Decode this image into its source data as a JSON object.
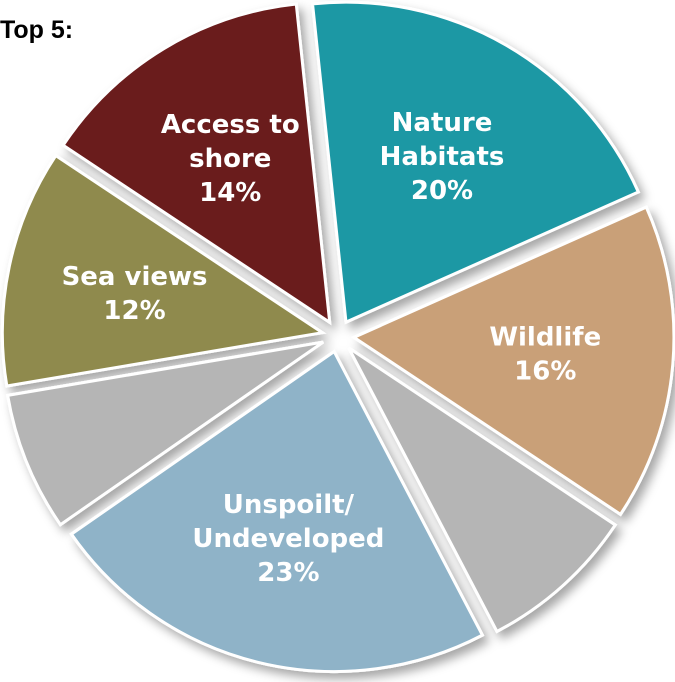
{
  "title": "Top 5:",
  "chart_data": {
    "type": "pie",
    "title": "Top 5:",
    "unit": "%",
    "slices": [
      {
        "name": "Nature Habitats",
        "lines": [
          "Nature",
          "Habitats"
        ],
        "value": 20,
        "value_label": "20%",
        "color": "#1f98a4"
      },
      {
        "name": "Wildlife",
        "lines": [
          "Wildlife"
        ],
        "value": 16,
        "value_label": "16%",
        "color": "#c9a078"
      },
      {
        "name": "",
        "lines": [],
        "value": 8,
        "value_label": "",
        "color": "#b5b5b5"
      },
      {
        "name": "Unspoilt/ Undeveloped",
        "lines": [
          "Unspoilt/",
          "Undeveloped"
        ],
        "value": 23,
        "value_label": "23%",
        "color": "#8fb3c8"
      },
      {
        "name": "",
        "lines": [],
        "value": 7,
        "value_label": "",
        "color": "#b5b5b5"
      },
      {
        "name": "Sea views",
        "lines": [
          "Sea views"
        ],
        "value": 12,
        "value_label": "12%",
        "color": "#8f8a4e"
      },
      {
        "name": "Access to shore",
        "lines": [
          "Access to",
          "shore"
        ],
        "value": 14,
        "value_label": "14%",
        "color": "#6a1a1c"
      }
    ]
  }
}
